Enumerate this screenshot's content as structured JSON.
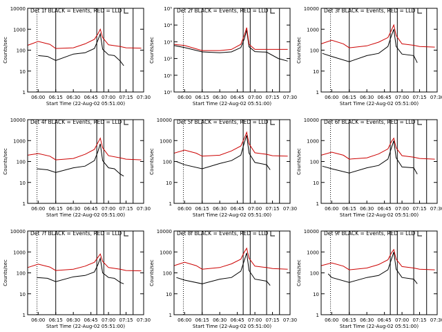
{
  "figure": {
    "ylabel": "Counts/sec",
    "xlabel": "Start Time (22-Aug-02 05:51:00)"
  },
  "colors": {
    "events": "#000000",
    "lld": "#cc0000",
    "axis": "#000000"
  },
  "chart_data": [
    {
      "type": "line",
      "title": "Det 1f BLACK = Events, RED = LLD",
      "y_log": true,
      "ylim": [
        1,
        10000
      ],
      "yticks": [
        "1",
        "10",
        "100",
        "1000",
        "10000"
      ],
      "xlim": [
        "05:51",
        "07:30"
      ],
      "xticks": [
        "06:00",
        "06:15",
        "06:30",
        "06:45",
        "07:00",
        "07:15",
        "07:30"
      ],
      "xlabel": "Start Time (22-Aug-02 05:51:00)",
      "ylabel": "Counts/sec",
      "vlines": [
        "05:59",
        "06:15",
        "06:50",
        "06:56",
        "07:10",
        "07:21"
      ],
      "series": [
        {
          "name": "Events",
          "color": "#000000",
          "x": [
            "06:00",
            "06:08",
            "06:15",
            "06:30",
            "06:40",
            "06:48",
            "06:51",
            "06:53",
            "06:55",
            "07:00",
            "07:05",
            "07:10",
            "07:13"
          ],
          "values": [
            55,
            50,
            32,
            65,
            75,
            120,
            300,
            600,
            110,
            60,
            55,
            30,
            18
          ]
        },
        {
          "name": "LLD",
          "color": "#cc0000",
          "x": [
            "05:51",
            "06:00",
            "06:10",
            "06:15",
            "06:30",
            "06:40",
            "06:48",
            "06:51",
            "06:53",
            "06:55",
            "07:00",
            "07:10",
            "07:15",
            "07:28"
          ],
          "values": [
            170,
            260,
            190,
            120,
            130,
            200,
            330,
            600,
            1000,
            400,
            180,
            150,
            130,
            125
          ]
        }
      ]
    },
    {
      "type": "line",
      "title": "Det 2f BLACK = Events, RED = LLD",
      "y_log": true,
      "ylim": [
        1,
        100000
      ],
      "yticks": [
        "10⁰",
        "10¹",
        "10²",
        "10³",
        "10⁴",
        "10⁵"
      ],
      "xlim": [
        "05:51",
        "07:30"
      ],
      "xticks": [
        "06:00",
        "06:15",
        "06:30",
        "06:45",
        "07:00",
        "07:15",
        "07:30"
      ],
      "xlabel": "Start Time (22-Aug-02 05:51:00)",
      "ylabel": "Counts/sec",
      "vlines": [
        "05:59",
        "06:15",
        "06:50",
        "06:56",
        "07:10",
        "07:21"
      ],
      "series": [
        {
          "name": "Events",
          "color": "#000000",
          "x": [
            "05:51",
            "06:00",
            "06:15",
            "06:30",
            "06:40",
            "06:48",
            "06:51",
            "06:53",
            "06:55",
            "07:00",
            "07:10",
            "07:20",
            "07:28"
          ],
          "values": [
            600,
            450,
            250,
            220,
            250,
            450,
            1500,
            5000,
            500,
            260,
            240,
            100,
            70
          ]
        },
        {
          "name": "LLD",
          "color": "#cc0000",
          "x": [
            "05:51",
            "06:00",
            "06:15",
            "06:30",
            "06:40",
            "06:48",
            "06:51",
            "06:53",
            "06:55",
            "07:00",
            "07:15",
            "07:28"
          ],
          "values": [
            700,
            600,
            300,
            300,
            350,
            700,
            2500,
            7000,
            700,
            350,
            350,
            350
          ]
        }
      ]
    },
    {
      "type": "line",
      "title": "Det 3f BLACK = Events, RED = LLD",
      "y_log": true,
      "ylim": [
        1,
        10000
      ],
      "yticks": [
        "1",
        "10",
        "100",
        "1000",
        "10000"
      ],
      "xlim": [
        "05:51",
        "07:30"
      ],
      "xticks": [
        "06:00",
        "06:15",
        "06:30",
        "06:45",
        "07:00",
        "07:15",
        "07:30"
      ],
      "xlabel": "Start Time (22-Aug-02 05:51:00)",
      "ylabel": "Counts/sec",
      "vlines": [
        "05:59",
        "06:15",
        "06:50",
        "06:56",
        "07:10",
        "07:21"
      ],
      "series": [
        {
          "name": "Events",
          "color": "#000000",
          "x": [
            "05:52",
            "06:00",
            "06:15",
            "06:30",
            "06:40",
            "06:48",
            "06:51",
            "06:53",
            "06:55",
            "07:00",
            "07:10",
            "07:13"
          ],
          "values": [
            70,
            50,
            28,
            55,
            70,
            150,
            500,
            1000,
            150,
            65,
            55,
            25
          ]
        },
        {
          "name": "LLD",
          "color": "#cc0000",
          "x": [
            "05:51",
            "06:00",
            "06:10",
            "06:15",
            "06:30",
            "06:40",
            "06:48",
            "06:51",
            "06:53",
            "06:55",
            "07:00",
            "07:10",
            "07:15",
            "07:28"
          ],
          "values": [
            200,
            300,
            200,
            130,
            160,
            240,
            400,
            900,
            1600,
            500,
            200,
            170,
            150,
            140
          ]
        }
      ]
    },
    {
      "type": "line",
      "title": "Det 4f BLACK = Events, RED = LLD",
      "y_log": true,
      "ylim": [
        1,
        10000
      ],
      "yticks": [
        "1",
        "10",
        "100",
        "1000",
        "10000"
      ],
      "xlim": [
        "05:51",
        "07:30"
      ],
      "xticks": [
        "06:00",
        "06:15",
        "06:30",
        "06:45",
        "07:00",
        "07:15",
        "07:30"
      ],
      "xlabel": "Start Time (22-Aug-02 05:51:00)",
      "ylabel": "Counts/sec",
      "vlines": [
        "05:59",
        "06:15",
        "06:50",
        "06:56",
        "07:10",
        "07:21"
      ],
      "series": [
        {
          "name": "Events",
          "color": "#000000",
          "x": [
            "05:59",
            "06:08",
            "06:15",
            "06:30",
            "06:40",
            "06:48",
            "06:51",
            "06:53",
            "06:55",
            "07:00",
            "07:05",
            "07:10",
            "07:13"
          ],
          "values": [
            45,
            40,
            30,
            50,
            60,
            110,
            300,
            700,
            110,
            50,
            45,
            25,
            20
          ]
        },
        {
          "name": "LLD",
          "color": "#cc0000",
          "x": [
            "05:51",
            "06:00",
            "06:10",
            "06:15",
            "06:30",
            "06:40",
            "06:48",
            "06:51",
            "06:53",
            "06:55",
            "07:00",
            "07:10",
            "07:15",
            "07:28"
          ],
          "values": [
            200,
            240,
            180,
            120,
            140,
            220,
            380,
            800,
            1300,
            450,
            190,
            150,
            130,
            120
          ]
        }
      ]
    },
    {
      "type": "line",
      "title": "Det 5f BLACK = Events, RED = LLD",
      "y_log": true,
      "ylim": [
        1,
        10000
      ],
      "yticks": [
        "1",
        "10",
        "100",
        "1000",
        "10000"
      ],
      "xlim": [
        "05:51",
        "07:30"
      ],
      "xticks": [
        "06:00",
        "06:15",
        "06:30",
        "06:45",
        "07:00",
        "07:15",
        "07:30"
      ],
      "xlabel": "Start Time (22-Aug-02 05:51:00)",
      "ylabel": "Counts/sec",
      "vlines": [
        "05:59",
        "06:15",
        "06:50",
        "06:56",
        "07:10",
        "07:21"
      ],
      "series": [
        {
          "name": "Events",
          "color": "#000000",
          "x": [
            "05:53",
            "06:00",
            "06:15",
            "06:30",
            "06:40",
            "06:48",
            "06:51",
            "06:53",
            "06:55",
            "07:00",
            "07:10",
            "07:13"
          ],
          "values": [
            100,
            70,
            45,
            80,
            110,
            200,
            800,
            1800,
            250,
            90,
            70,
            40
          ]
        },
        {
          "name": "LLD",
          "color": "#cc0000",
          "x": [
            "05:51",
            "06:00",
            "06:10",
            "06:15",
            "06:30",
            "06:40",
            "06:48",
            "06:51",
            "06:53",
            "06:55",
            "07:00",
            "07:10",
            "07:15",
            "07:28"
          ],
          "values": [
            250,
            350,
            250,
            180,
            200,
            320,
            550,
            1300,
            2500,
            700,
            260,
            220,
            190,
            180
          ]
        }
      ]
    },
    {
      "type": "line",
      "title": "Det 6f BLACK = Events, RED = LLD",
      "y_log": true,
      "ylim": [
        1,
        10000
      ],
      "yticks": [
        "1",
        "10",
        "100",
        "1000",
        "10000"
      ],
      "xlim": [
        "05:51",
        "07:30"
      ],
      "xticks": [
        "06:00",
        "06:15",
        "06:30",
        "06:45",
        "07:00",
        "07:15",
        "07:30"
      ],
      "xlabel": "Start Time (22-Aug-02 05:51:00)",
      "ylabel": "Counts/sec",
      "vlines": [
        "05:59",
        "06:15",
        "06:50",
        "06:56",
        "07:10",
        "07:21"
      ],
      "series": [
        {
          "name": "Events",
          "color": "#000000",
          "x": [
            "05:52",
            "06:00",
            "06:15",
            "06:30",
            "06:40",
            "06:48",
            "06:51",
            "06:53",
            "06:55",
            "07:00",
            "07:10",
            "07:13"
          ],
          "values": [
            60,
            45,
            28,
            50,
            65,
            130,
            450,
            1000,
            150,
            55,
            50,
            25
          ]
        },
        {
          "name": "LLD",
          "color": "#cc0000",
          "x": [
            "05:51",
            "06:00",
            "06:10",
            "06:15",
            "06:30",
            "06:40",
            "06:48",
            "06:51",
            "06:53",
            "06:55",
            "07:00",
            "07:10",
            "07:15",
            "07:28"
          ],
          "values": [
            200,
            280,
            200,
            130,
            150,
            230,
            400,
            900,
            1300,
            450,
            190,
            160,
            140,
            130
          ]
        }
      ]
    },
    {
      "type": "line",
      "title": "Det 7f BLACK = Events, RED = LLD",
      "y_log": true,
      "ylim": [
        1,
        10000
      ],
      "yticks": [
        "1",
        "10",
        "100",
        "1000",
        "10000"
      ],
      "xlim": [
        "05:51",
        "07:30"
      ],
      "xticks": [
        "06:00",
        "06:15",
        "06:30",
        "06:45",
        "07:00",
        "07:15",
        "07:30"
      ],
      "xlabel": "Start Time (22-Aug-02 05:51:00)",
      "ylabel": "Counts/sec",
      "vlines": [
        "05:59",
        "06:15",
        "06:50",
        "06:56",
        "07:10",
        "07:21"
      ],
      "series": [
        {
          "name": "Events",
          "color": "#000000",
          "x": [
            "05:59",
            "06:08",
            "06:15",
            "06:30",
            "06:40",
            "06:48",
            "06:51",
            "06:53",
            "06:55",
            "07:00",
            "07:05",
            "07:10",
            "07:13"
          ],
          "values": [
            60,
            55,
            38,
            65,
            75,
            110,
            250,
            500,
            100,
            60,
            55,
            35,
            30
          ]
        },
        {
          "name": "LLD",
          "color": "#cc0000",
          "x": [
            "05:51",
            "06:00",
            "06:10",
            "06:15",
            "06:30",
            "06:40",
            "06:48",
            "06:51",
            "06:53",
            "06:55",
            "07:00",
            "07:10",
            "07:15",
            "07:28"
          ],
          "values": [
            180,
            260,
            190,
            130,
            150,
            210,
            320,
            550,
            800,
            350,
            180,
            150,
            130,
            125
          ]
        }
      ]
    },
    {
      "type": "line",
      "title": "Det 8f BLACK = Events, RED = LLD",
      "y_log": true,
      "ylim": [
        1,
        10000
      ],
      "yticks": [
        "1",
        "10",
        "100",
        "1000",
        "10000"
      ],
      "xlim": [
        "05:51",
        "07:30"
      ],
      "xticks": [
        "06:00",
        "06:15",
        "06:30",
        "06:45",
        "07:00",
        "07:15",
        "07:30"
      ],
      "xlabel": "Start Time (22-Aug-02 05:51:00)",
      "ylabel": "Counts/sec",
      "vlines": [
        "05:59",
        "06:15",
        "06:50",
        "06:56",
        "07:10",
        "07:21"
      ],
      "series": [
        {
          "name": "Events",
          "color": "#000000",
          "x": [
            "05:53",
            "06:00",
            "06:15",
            "06:30",
            "06:40",
            "06:48",
            "06:51",
            "06:53",
            "06:55",
            "07:00",
            "07:10",
            "07:13"
          ],
          "values": [
            60,
            45,
            30,
            50,
            60,
            120,
            400,
            900,
            130,
            50,
            40,
            25
          ]
        },
        {
          "name": "LLD",
          "color": "#cc0000",
          "x": [
            "05:51",
            "06:00",
            "06:10",
            "06:15",
            "06:30",
            "06:40",
            "06:48",
            "06:51",
            "06:53",
            "06:55",
            "07:00",
            "07:10",
            "07:15",
            "07:28"
          ],
          "values": [
            220,
            320,
            220,
            150,
            180,
            270,
            450,
            1000,
            1500,
            500,
            210,
            180,
            160,
            150
          ]
        }
      ]
    },
    {
      "type": "line",
      "title": "Det 9f BLACK = Events, RED = LLD",
      "y_log": true,
      "ylim": [
        1,
        10000
      ],
      "yticks": [
        "1",
        "10",
        "100",
        "1000",
        "10000"
      ],
      "xlim": [
        "05:51",
        "07:30"
      ],
      "xticks": [
        "06:00",
        "06:15",
        "06:30",
        "06:45",
        "07:00",
        "07:15",
        "07:30"
      ],
      "xlabel": "Start Time (22-Aug-02 05:51:00)",
      "ylabel": "Counts/sec",
      "vlines": [
        "05:59",
        "06:15",
        "06:50",
        "06:56",
        "07:10",
        "07:21"
      ],
      "series": [
        {
          "name": "Events",
          "color": "#000000",
          "x": [
            "05:57",
            "06:00",
            "06:15",
            "06:30",
            "06:40",
            "06:48",
            "06:51",
            "06:53",
            "06:55",
            "07:00",
            "07:10",
            "07:13"
          ],
          "values": [
            90,
            60,
            35,
            60,
            75,
            140,
            450,
            1000,
            150,
            60,
            50,
            30
          ]
        },
        {
          "name": "LLD",
          "color": "#cc0000",
          "x": [
            "05:51",
            "06:00",
            "06:10",
            "06:15",
            "06:30",
            "06:40",
            "06:48",
            "06:51",
            "06:53",
            "06:55",
            "07:00",
            "07:10",
            "07:15",
            "07:28"
          ],
          "values": [
            220,
            300,
            210,
            140,
            170,
            250,
            420,
            900,
            1300,
            450,
            200,
            170,
            150,
            140
          ]
        }
      ]
    }
  ]
}
